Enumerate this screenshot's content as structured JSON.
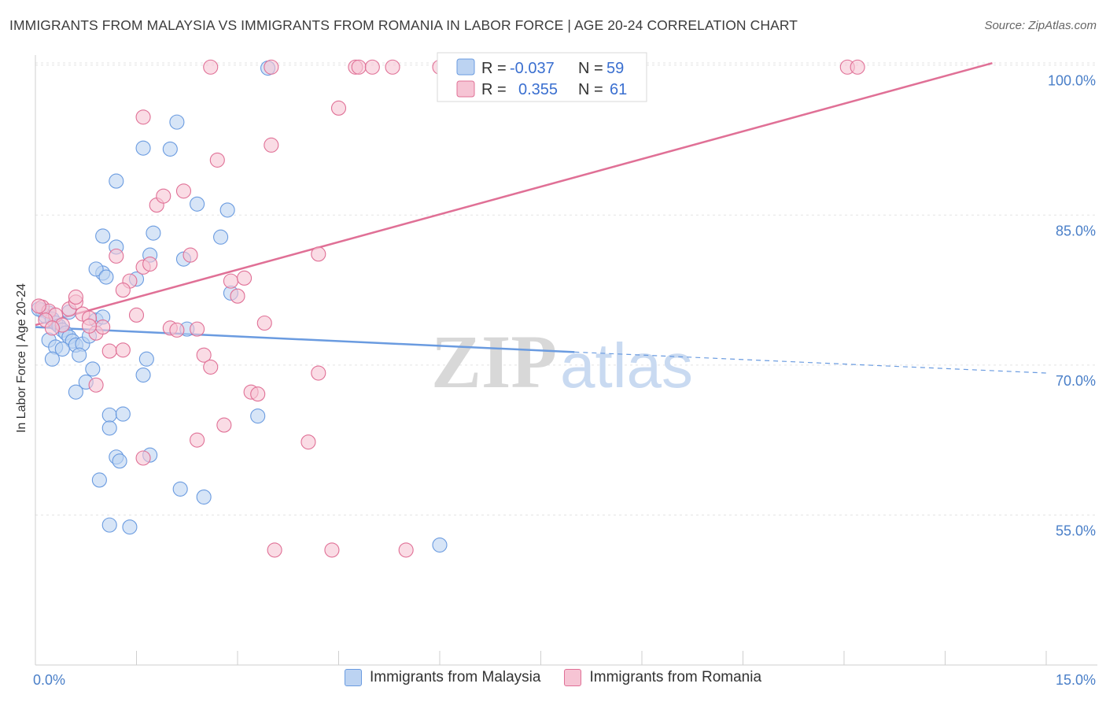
{
  "chart_data": {
    "type": "scatter",
    "title": "IMMIGRANTS FROM MALAYSIA VS IMMIGRANTS FROM ROMANIA IN LABOR FORCE | AGE 20-24 CORRELATION CHART",
    "source": "Source: ZipAtlas.com",
    "ylabel": "In Labor Force | Age 20-24",
    "xlim": [
      0,
      15
    ],
    "ylim": [
      40,
      101
    ],
    "x_tick_labels": [
      "0.0%",
      "15.0%"
    ],
    "y_ticks": [
      55,
      70,
      85,
      100
    ],
    "y_tick_labels": [
      "55.0%",
      "70.0%",
      "85.0%",
      "100.0%"
    ],
    "watermark": {
      "zip": "ZIP",
      "atlas": "atlas"
    },
    "legend_box": [
      {
        "r_label": "R =",
        "r": "-0.037",
        "n_label": "N =",
        "n": "59"
      },
      {
        "r_label": "R =",
        "r": "0.355",
        "n_label": "N =",
        "n": "61"
      }
    ],
    "series": [
      {
        "name": "Immigrants from Malaysia",
        "color": "#6a9be0",
        "fill": "#bcd3f2",
        "trend": {
          "x0": 0,
          "y0": 73.8,
          "x1": 8.0,
          "y1": 71.3,
          "dash_to_x": 15,
          "dash_to_y": 69.2
        },
        "points": [
          [
            0.1,
            75.5
          ],
          [
            0.2,
            75.2
          ],
          [
            0.15,
            74.9
          ],
          [
            0.25,
            74.6
          ],
          [
            0.3,
            74.2
          ],
          [
            0.35,
            73.9
          ],
          [
            0.4,
            73.5
          ],
          [
            0.45,
            73.2
          ],
          [
            0.5,
            72.8
          ],
          [
            0.55,
            72.4
          ],
          [
            0.6,
            72.0
          ],
          [
            0.2,
            72.5
          ],
          [
            0.3,
            71.8
          ],
          [
            0.4,
            71.6
          ],
          [
            0.7,
            72.1
          ],
          [
            0.8,
            72.9
          ],
          [
            0.9,
            74.5
          ],
          [
            1.0,
            74.8
          ],
          [
            0.5,
            75.3
          ],
          [
            0.65,
            71.0
          ],
          [
            0.75,
            68.3
          ],
          [
            0.85,
            69.6
          ],
          [
            0.25,
            70.6
          ],
          [
            0.6,
            67.3
          ],
          [
            1.1,
            65.0
          ],
          [
            1.3,
            65.1
          ],
          [
            1.1,
            63.7
          ],
          [
            1.2,
            60.8
          ],
          [
            1.25,
            60.4
          ],
          [
            1.7,
            61.0
          ],
          [
            0.95,
            58.5
          ],
          [
            1.1,
            54.0
          ],
          [
            1.4,
            53.8
          ],
          [
            2.15,
            57.6
          ],
          [
            2.5,
            56.8
          ],
          [
            3.3,
            64.9
          ],
          [
            1.6,
            69.0
          ],
          [
            1.65,
            70.6
          ],
          [
            2.25,
            73.6
          ],
          [
            2.9,
            77.2
          ],
          [
            2.75,
            82.8
          ],
          [
            2.2,
            80.6
          ],
          [
            1.7,
            81.0
          ],
          [
            1.5,
            78.6
          ],
          [
            1.0,
            79.2
          ],
          [
            0.9,
            79.6
          ],
          [
            1.05,
            78.8
          ],
          [
            1.0,
            82.9
          ],
          [
            1.2,
            81.8
          ],
          [
            1.75,
            83.2
          ],
          [
            2.4,
            86.1
          ],
          [
            2.85,
            85.5
          ],
          [
            1.2,
            88.4
          ],
          [
            1.6,
            91.7
          ],
          [
            2.0,
            91.6
          ],
          [
            2.1,
            94.3
          ],
          [
            3.45,
            99.7
          ],
          [
            6.0,
            52.0
          ],
          [
            0.05,
            75.6
          ]
        ]
      },
      {
        "name": "Immigrants from Romania",
        "color": "#e07096",
        "fill": "#f6c4d4",
        "trend": {
          "x0": 0,
          "y0": 74.0,
          "x1": 14.2,
          "y1": 100.2
        },
        "points": [
          [
            0.1,
            75.8
          ],
          [
            0.2,
            75.4
          ],
          [
            0.3,
            75.0
          ],
          [
            0.15,
            74.5
          ],
          [
            0.4,
            74.0
          ],
          [
            0.5,
            75.6
          ],
          [
            0.6,
            76.3
          ],
          [
            0.7,
            75.1
          ],
          [
            0.8,
            74.7
          ],
          [
            0.9,
            73.2
          ],
          [
            1.0,
            73.8
          ],
          [
            1.1,
            71.4
          ],
          [
            1.2,
            80.9
          ],
          [
            1.3,
            71.5
          ],
          [
            1.4,
            78.4
          ],
          [
            1.5,
            75.0
          ],
          [
            1.6,
            79.8
          ],
          [
            1.7,
            80.1
          ],
          [
            1.8,
            86.0
          ],
          [
            1.9,
            86.9
          ],
          [
            2.0,
            73.7
          ],
          [
            2.1,
            73.5
          ],
          [
            2.2,
            87.4
          ],
          [
            2.3,
            81.0
          ],
          [
            2.4,
            73.6
          ],
          [
            2.5,
            71.0
          ],
          [
            2.6,
            69.8
          ],
          [
            2.7,
            90.5
          ],
          [
            2.8,
            64.0
          ],
          [
            2.9,
            78.4
          ],
          [
            3.0,
            76.9
          ],
          [
            3.1,
            78.7
          ],
          [
            3.2,
            67.3
          ],
          [
            3.3,
            67.1
          ],
          [
            3.4,
            74.2
          ],
          [
            3.5,
            92.0
          ],
          [
            2.4,
            62.5
          ],
          [
            1.6,
            60.7
          ],
          [
            1.6,
            94.8
          ],
          [
            4.05,
            62.3
          ],
          [
            4.2,
            69.2
          ],
          [
            4.2,
            81.1
          ],
          [
            4.75,
            99.8
          ],
          [
            4.8,
            99.8
          ],
          [
            4.5,
            95.7
          ],
          [
            5.0,
            99.8
          ],
          [
            5.3,
            99.8
          ],
          [
            6.0,
            99.8
          ],
          [
            3.5,
            99.8
          ],
          [
            2.6,
            99.8
          ],
          [
            3.55,
            51.5
          ],
          [
            4.4,
            51.5
          ],
          [
            5.5,
            51.5
          ],
          [
            0.6,
            76.8
          ],
          [
            0.9,
            68.0
          ],
          [
            1.3,
            77.5
          ],
          [
            0.8,
            73.9
          ],
          [
            12.05,
            99.8
          ],
          [
            12.2,
            99.8
          ],
          [
            0.05,
            75.9
          ],
          [
            0.25,
            73.7
          ]
        ]
      }
    ]
  }
}
